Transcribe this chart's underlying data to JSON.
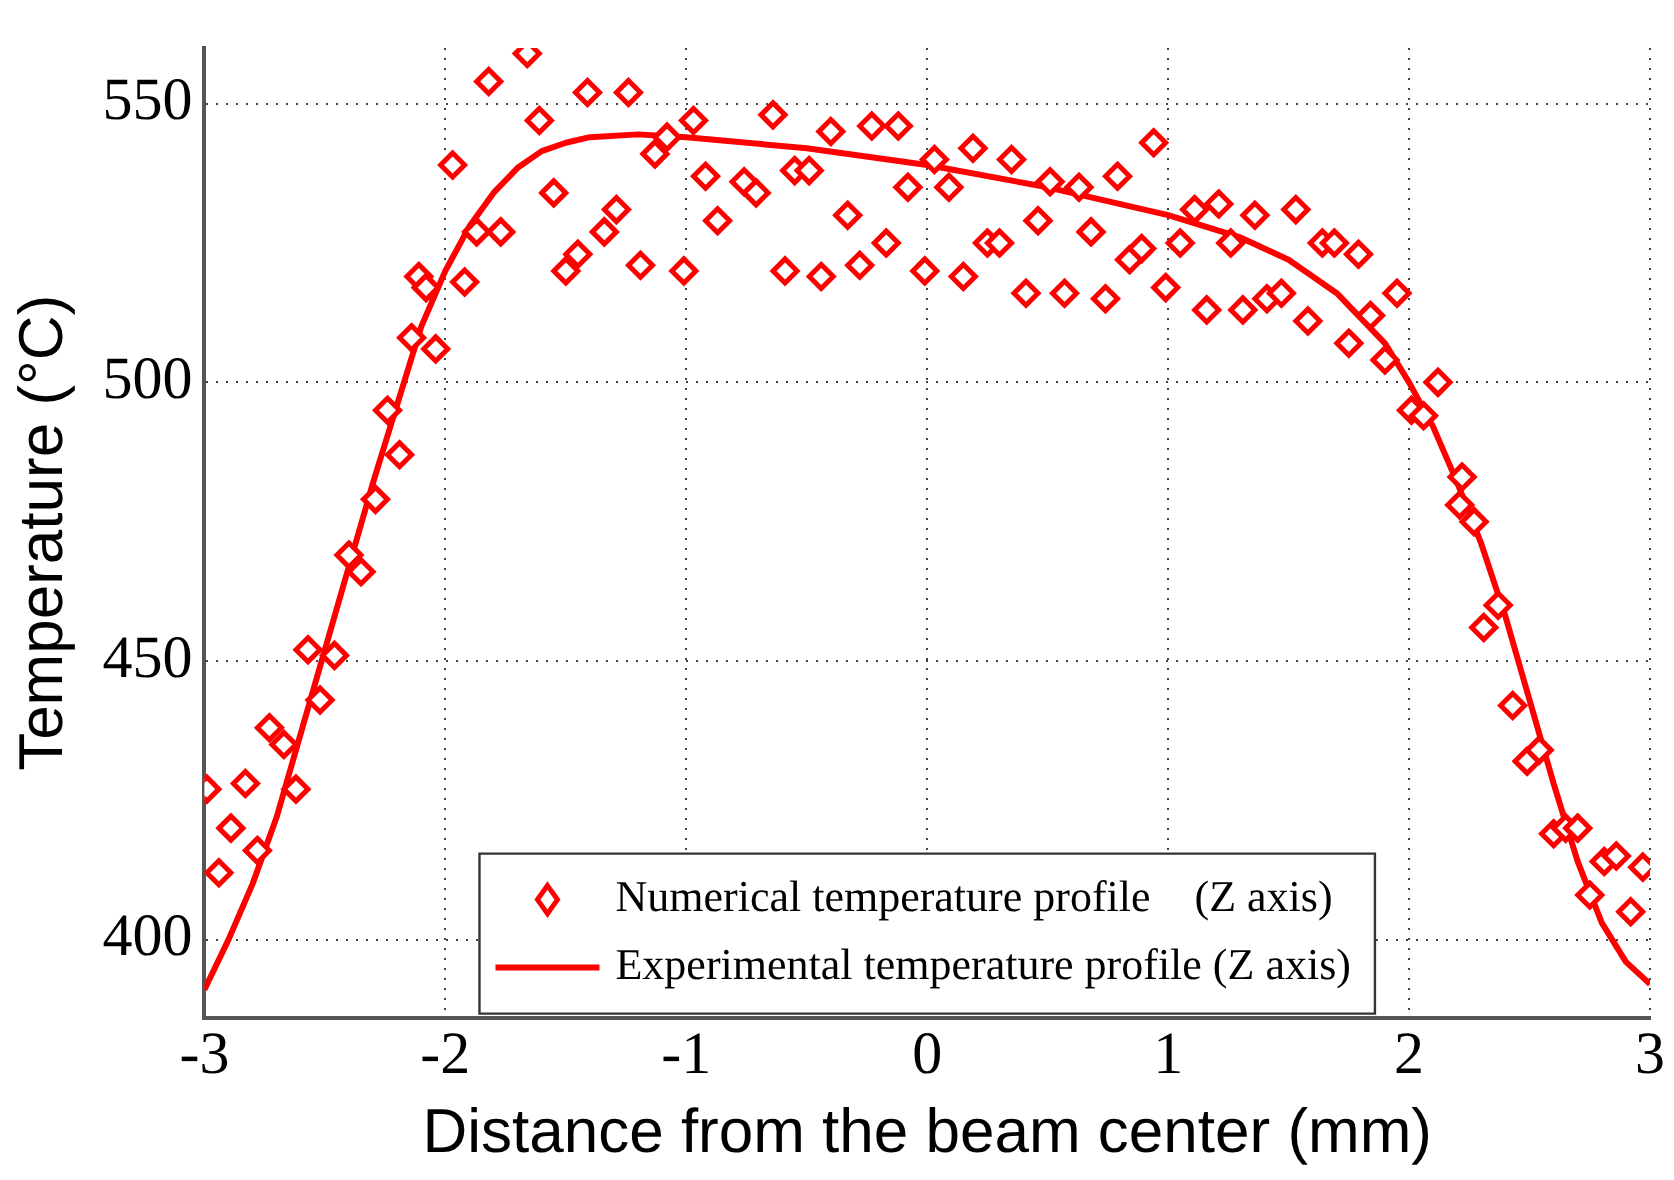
{
  "chart_data": {
    "type": "scatter",
    "xlabel": "Distance from the beam center (mm)",
    "ylabel": "Temperature (°C)",
    "xlim": [
      -3,
      3
    ],
    "xticks": [
      -3,
      -2,
      -1,
      0,
      1,
      2,
      3
    ],
    "ylim": [
      386,
      560
    ],
    "yticks": [
      400,
      450,
      500,
      550
    ],
    "grid": true,
    "legend": "bottom",
    "line_style": "solid",
    "series": [
      {
        "name": "Numerical temperature profile    (Z axis)",
        "marker": "diamond",
        "color": "#ff0000",
        "x": [
          -2.99,
          -2.94,
          -2.89,
          -2.83,
          -2.78,
          -2.73,
          -2.67,
          -2.62,
          -2.57,
          -2.52,
          -2.46,
          -2.4,
          -2.35,
          -2.29,
          -2.24,
          -2.19,
          -2.14,
          -2.11,
          -2.08,
          -2.04,
          -1.97,
          -1.92,
          -1.87,
          -1.82,
          -1.77,
          -1.66,
          -1.61,
          -1.55,
          -1.5,
          -1.45,
          -1.41,
          -1.34,
          -1.29,
          -1.24,
          -1.19,
          -1.13,
          -1.08,
          -1.01,
          -0.97,
          -0.92,
          -0.87,
          -0.76,
          -0.71,
          -0.64,
          -0.59,
          -0.55,
          -0.49,
          -0.44,
          -0.4,
          -0.33,
          -0.28,
          -0.23,
          -0.17,
          -0.12,
          -0.08,
          -0.01,
          0.03,
          0.09,
          0.15,
          0.19,
          0.25,
          0.3,
          0.35,
          0.41,
          0.46,
          0.51,
          0.57,
          0.63,
          0.68,
          0.74,
          0.79,
          0.84,
          0.89,
          0.94,
          0.99,
          1.05,
          1.11,
          1.16,
          1.21,
          1.26,
          1.31,
          1.36,
          1.41,
          1.47,
          1.53,
          1.58,
          1.64,
          1.69,
          1.75,
          1.79,
          1.84,
          1.9,
          1.95,
          2.01,
          2.06,
          2.12,
          2.21,
          2.22,
          2.27,
          2.31,
          2.37,
          2.43,
          2.49,
          2.54,
          2.6,
          2.65,
          2.7,
          2.75,
          2.81,
          2.86,
          2.92,
          2.97
        ],
        "values": [
          427,
          412,
          420,
          428,
          416,
          438,
          435,
          427,
          452,
          443,
          451,
          469,
          466,
          479,
          495,
          487,
          508,
          519,
          517,
          506,
          539,
          518,
          527,
          554,
          527,
          559,
          547,
          534,
          520,
          523,
          552,
          527,
          531,
          552,
          521,
          541,
          544,
          520,
          547,
          537,
          529,
          536,
          534,
          548,
          520,
          538,
          538,
          519,
          545,
          530,
          521,
          546,
          525,
          546,
          535,
          520,
          540,
          535,
          519,
          542,
          525,
          525,
          540,
          516,
          529,
          536,
          516,
          535,
          527,
          515,
          537,
          522,
          524,
          543,
          517,
          525,
          531,
          513,
          532,
          525,
          513,
          530,
          515,
          516,
          531,
          511,
          525,
          525,
          507,
          523,
          512,
          504,
          516,
          495,
          494,
          500,
          478,
          483,
          475,
          456,
          460,
          442,
          432,
          434,
          419,
          420,
          420,
          408,
          414,
          415,
          405,
          413
        ]
      },
      {
        "name": "Experimental temperature profile (Z axis)",
        "type": "line",
        "marker": "none",
        "color": "#ff0000",
        "x": [
          -3,
          -2.9,
          -2.8,
          -2.7,
          -2.6,
          -2.5,
          -2.4,
          -2.3,
          -2.2,
          -2.1,
          -2,
          -1.9,
          -1.8,
          -1.7,
          -1.6,
          -1.5,
          -1.4,
          -1.2,
          -1,
          -0.5,
          0,
          0.5,
          1,
          1.3,
          1.5,
          1.7,
          1.9,
          2,
          2.1,
          2.2,
          2.3,
          2.4,
          2.5,
          2.6,
          2.7,
          2.8,
          2.9,
          3
        ],
        "values": [
          391,
          400,
          410,
          422,
          437,
          452,
          467,
          482,
          496,
          510,
          520,
          528,
          534,
          538.5,
          541.5,
          543,
          544,
          544.5,
          544,
          542,
          539,
          535,
          530,
          526,
          522,
          516,
          507,
          500,
          492,
          482,
          471,
          458,
          443,
          428,
          414,
          403,
          396,
          392
        ]
      }
    ]
  }
}
